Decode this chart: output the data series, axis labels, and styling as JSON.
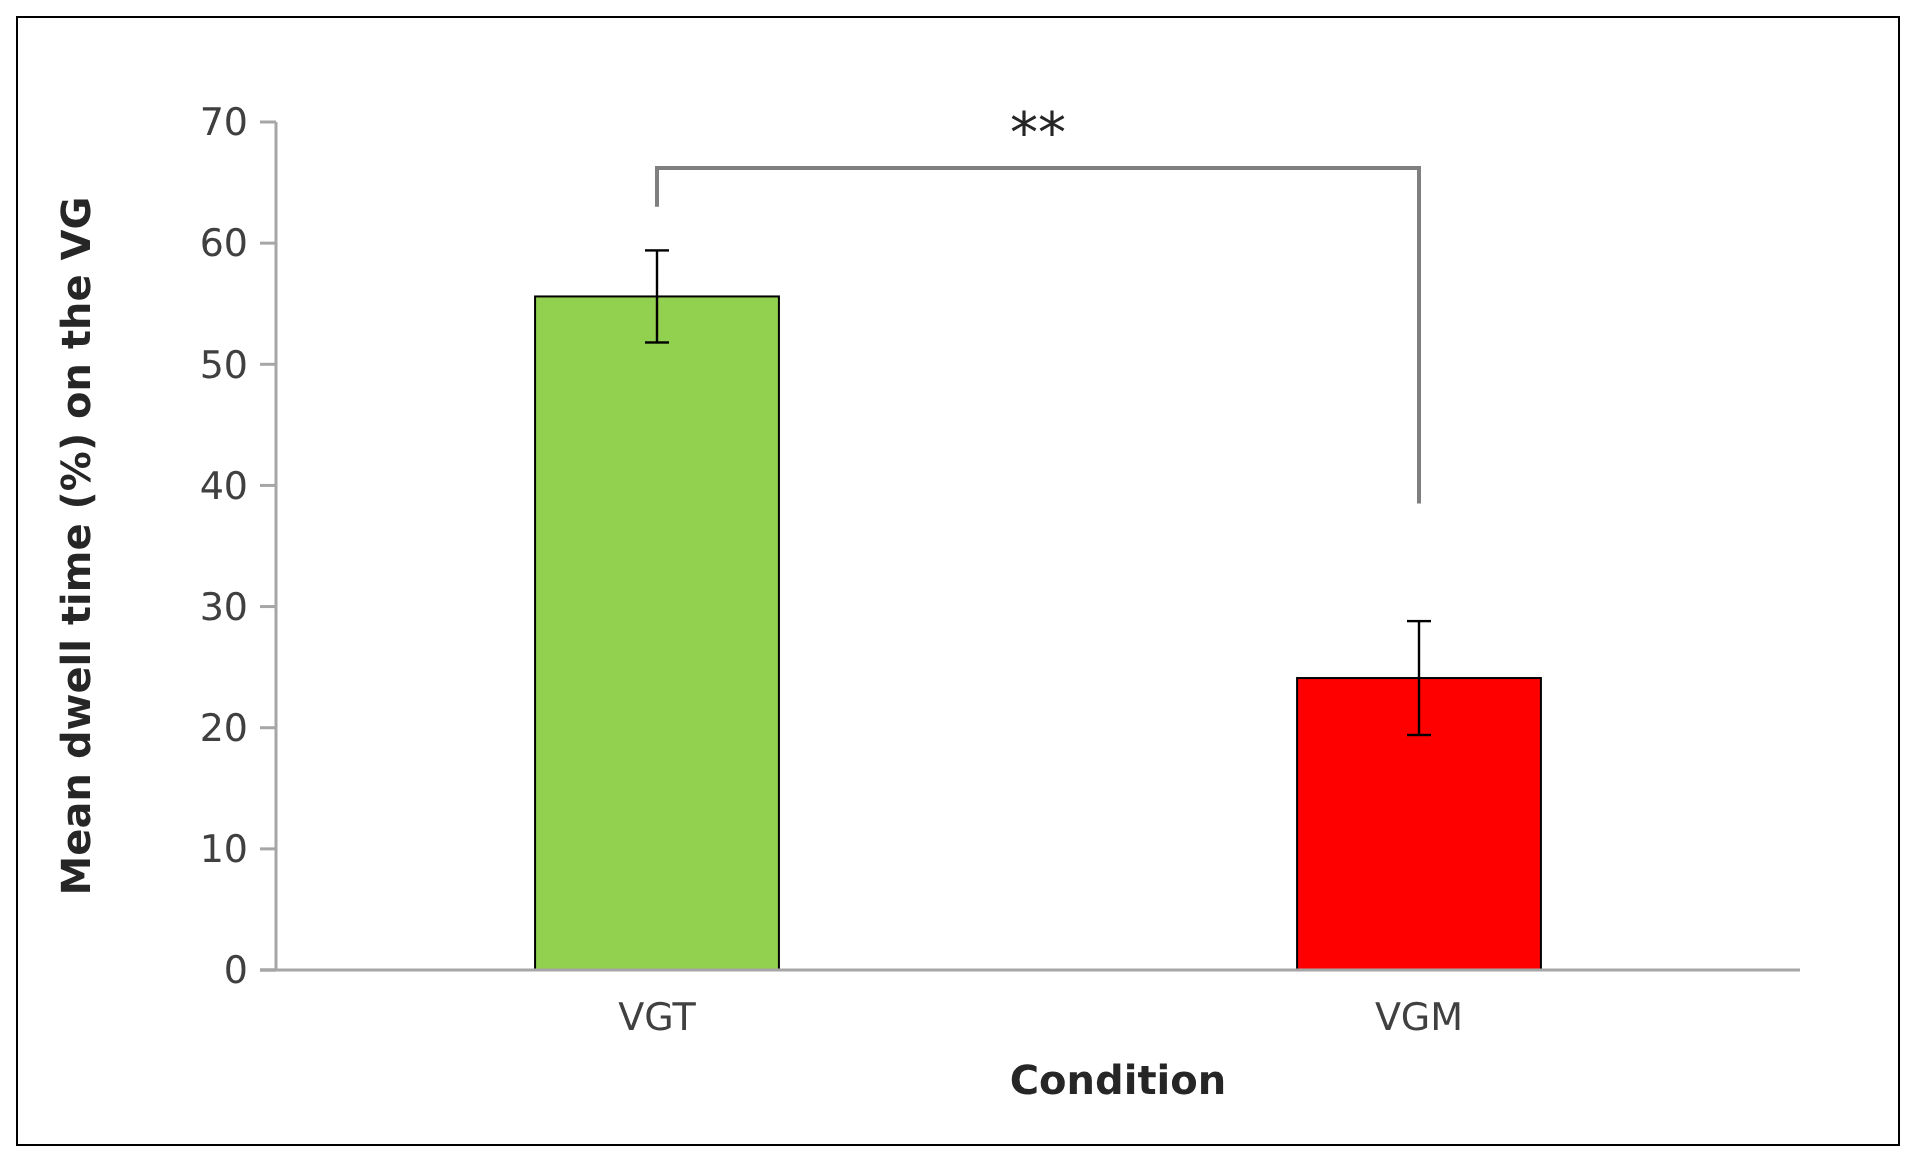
{
  "chart_data": {
    "type": "bar",
    "xlabel": "Condition",
    "ylabel": "Mean dwell time (%) on the VG",
    "categories": [
      "VGT",
      "VGM"
    ],
    "values": [
      55.6,
      24.1
    ],
    "colors": [
      "#92d050",
      "#ff0000"
    ],
    "errors": [
      3.8,
      4.7
    ],
    "ylim": [
      0,
      70
    ],
    "yticks": [
      0,
      10,
      20,
      30,
      40,
      50,
      60,
      70
    ],
    "grid": false,
    "annotations": [
      "**"
    ]
  }
}
